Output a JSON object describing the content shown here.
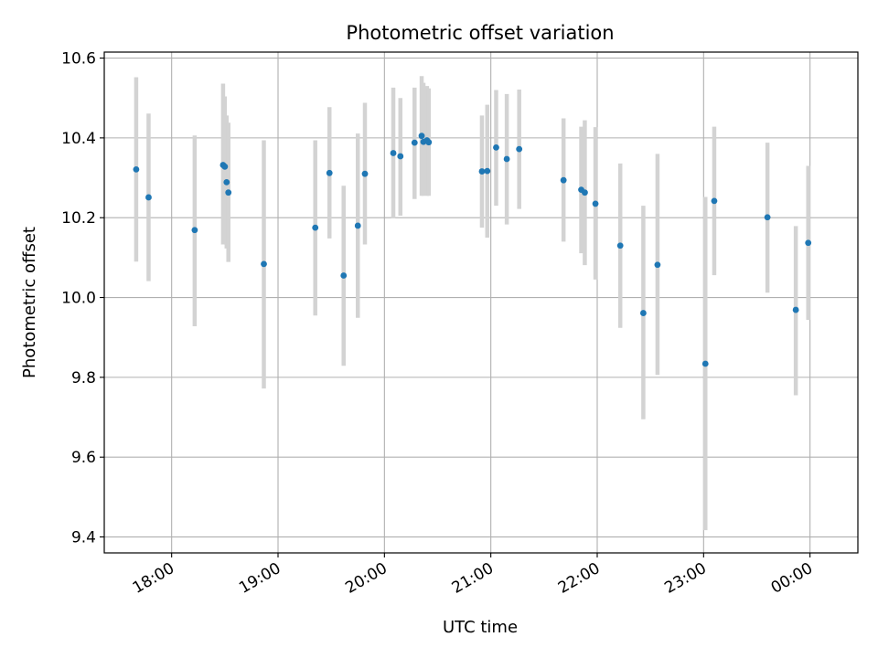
{
  "chart_data": {
    "type": "scatter",
    "title": "Photometric offset variation",
    "xlabel": "UTC time",
    "ylabel": "Photometric offset",
    "grid": true,
    "xlim": [
      "17:22",
      "00:27"
    ],
    "ylim": [
      9.36,
      10.615
    ],
    "x_ticks": [
      {
        "time": "18:00",
        "label": "18:00"
      },
      {
        "time": "19:00",
        "label": "19:00"
      },
      {
        "time": "20:00",
        "label": "20:00"
      },
      {
        "time": "21:00",
        "label": "21:00"
      },
      {
        "time": "22:00",
        "label": "22:00"
      },
      {
        "time": "23:00",
        "label": "23:00"
      },
      {
        "time": "24:00",
        "label": "00:00"
      }
    ],
    "y_ticks": [
      {
        "value": 9.4,
        "label": "9.4"
      },
      {
        "value": 9.6,
        "label": "9.6"
      },
      {
        "value": 9.8,
        "label": "9.8"
      },
      {
        "value": 10.0,
        "label": "10.0"
      },
      {
        "value": 10.2,
        "label": "10.2"
      },
      {
        "value": 10.4,
        "label": "10.4"
      },
      {
        "value": 10.6,
        "label": "10.6"
      }
    ],
    "point_color": "#1f77b4",
    "errorbar_color": "#d3d3d3",
    "points": [
      {
        "x": "17:40",
        "y": 10.321,
        "lo": 10.09,
        "hi": 10.552
      },
      {
        "x": "17:47",
        "y": 10.251,
        "lo": 10.041,
        "hi": 10.461
      },
      {
        "x": "18:13",
        "y": 10.169,
        "lo": 9.928,
        "hi": 10.406
      },
      {
        "x": "18:29",
        "y": 10.332,
        "lo": 10.133,
        "hi": 10.536
      },
      {
        "x": "18:30",
        "y": 10.328,
        "lo": 10.133,
        "hi": 10.504
      },
      {
        "x": "18:31",
        "y": 10.289,
        "lo": 10.123,
        "hi": 10.456
      },
      {
        "x": "18:32",
        "y": 10.263,
        "lo": 10.089,
        "hi": 10.438
      },
      {
        "x": "18:52",
        "y": 10.084,
        "lo": 9.772,
        "hi": 10.394
      },
      {
        "x": "19:21",
        "y": 10.175,
        "lo": 9.955,
        "hi": 10.394
      },
      {
        "x": "19:29",
        "y": 10.312,
        "lo": 10.148,
        "hi": 10.477
      },
      {
        "x": "19:37",
        "y": 10.055,
        "lo": 9.829,
        "hi": 10.28
      },
      {
        "x": "19:45",
        "y": 10.18,
        "lo": 9.949,
        "hi": 10.411
      },
      {
        "x": "19:49",
        "y": 10.31,
        "lo": 10.133,
        "hi": 10.488
      },
      {
        "x": "20:05",
        "y": 10.362,
        "lo": 10.199,
        "hi": 10.526
      },
      {
        "x": "20:09",
        "y": 10.354,
        "lo": 10.205,
        "hi": 10.5
      },
      {
        "x": "20:17",
        "y": 10.388,
        "lo": 10.247,
        "hi": 10.526
      },
      {
        "x": "20:21",
        "y": 10.405,
        "lo": 10.255,
        "hi": 10.555
      },
      {
        "x": "20:22",
        "y": 10.39,
        "lo": 10.255,
        "hi": 10.538
      },
      {
        "x": "20:24",
        "y": 10.394,
        "lo": 10.255,
        "hi": 10.53
      },
      {
        "x": "20:25",
        "y": 10.389,
        "lo": 10.255,
        "hi": 10.524
      },
      {
        "x": "20:55",
        "y": 10.316,
        "lo": 10.175,
        "hi": 10.456
      },
      {
        "x": "20:58",
        "y": 10.317,
        "lo": 10.15,
        "hi": 10.483
      },
      {
        "x": "21:03",
        "y": 10.376,
        "lo": 10.23,
        "hi": 10.52
      },
      {
        "x": "21:09",
        "y": 10.347,
        "lo": 10.183,
        "hi": 10.51
      },
      {
        "x": "21:16",
        "y": 10.372,
        "lo": 10.222,
        "hi": 10.521
      },
      {
        "x": "21:41",
        "y": 10.294,
        "lo": 10.14,
        "hi": 10.449
      },
      {
        "x": "21:51",
        "y": 10.27,
        "lo": 10.111,
        "hi": 10.428
      },
      {
        "x": "21:53",
        "y": 10.263,
        "lo": 10.081,
        "hi": 10.444
      },
      {
        "x": "21:59",
        "y": 10.235,
        "lo": 10.045,
        "hi": 10.427
      },
      {
        "x": "22:13",
        "y": 10.13,
        "lo": 9.924,
        "hi": 10.336
      },
      {
        "x": "22:26",
        "y": 9.961,
        "lo": 9.695,
        "hi": 10.23
      },
      {
        "x": "22:34",
        "y": 10.082,
        "lo": 9.806,
        "hi": 10.36
      },
      {
        "x": "23:01",
        "y": 9.834,
        "lo": 9.417,
        "hi": 10.252
      },
      {
        "x": "23:06",
        "y": 10.242,
        "lo": 10.056,
        "hi": 10.428
      },
      {
        "x": "23:36",
        "y": 10.201,
        "lo": 10.012,
        "hi": 10.388
      },
      {
        "x": "23:52",
        "y": 9.969,
        "lo": 9.755,
        "hi": 10.179
      },
      {
        "x": "23:59",
        "y": 10.137,
        "lo": 9.944,
        "hi": 10.33
      }
    ]
  }
}
